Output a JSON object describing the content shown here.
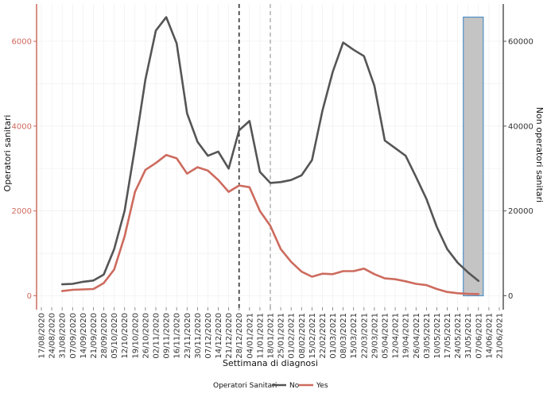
{
  "chart_data": {
    "type": "line",
    "xlabel": "Settimana di diagnosi",
    "ylabel_left": "Operatori sanitari",
    "ylabel_right": "Non operatori sanitari",
    "ylim_left": [
      0,
      7000
    ],
    "ylim_right": [
      0,
      70000
    ],
    "yticks_left": [
      0,
      2000,
      4000,
      6000
    ],
    "yticks_right": [
      0,
      20000,
      40000,
      60000
    ],
    "x_tick_labels": [
      "17/08/2020",
      "24/08/2020",
      "31/08/2020",
      "07/09/2020",
      "14/09/2020",
      "21/09/2020",
      "28/09/2020",
      "05/10/2020",
      "12/10/2020",
      "19/10/2020",
      "26/10/2020",
      "02/11/2020",
      "09/11/2020",
      "16/11/2020",
      "23/11/2020",
      "30/11/2020",
      "07/12/2020",
      "14/12/2020",
      "21/12/2020",
      "28/12/2020",
      "04/01/2021",
      "11/01/2021",
      "18/01/2021",
      "25/01/2021",
      "01/02/2021",
      "08/02/2021",
      "15/02/2021",
      "22/02/2021",
      "01/03/2021",
      "08/03/2021",
      "15/03/2021",
      "22/03/2021",
      "29/03/2021",
      "05/04/2021",
      "12/04/2021",
      "19/04/2021",
      "26/04/2021",
      "03/05/2021",
      "10/05/2021",
      "17/05/2021",
      "24/05/2021",
      "31/05/2021",
      "07/06/2021",
      "14/06/2021",
      "21/06/2021"
    ],
    "grid": true,
    "legend": {
      "title": "Operatori Sanitari",
      "position": "bottom",
      "entries": [
        {
          "name": "No",
          "color": "#555555"
        },
        {
          "name": "Yes",
          "color": "#cd6b5e"
        }
      ]
    },
    "series": [
      {
        "name": "No",
        "axis": "right",
        "color": "#555555",
        "x": [
          "31/08/2020",
          "07/09/2020",
          "14/09/2020",
          "21/09/2020",
          "28/09/2020",
          "05/10/2020",
          "12/10/2020",
          "19/10/2020",
          "26/10/2020",
          "02/11/2020",
          "09/11/2020",
          "16/11/2020",
          "23/11/2020",
          "30/11/2020",
          "07/12/2020",
          "14/12/2020",
          "21/12/2020",
          "28/12/2020",
          "04/01/2021",
          "11/01/2021",
          "18/01/2021",
          "25/01/2021",
          "01/02/2021",
          "08/02/2021",
          "15/02/2021",
          "22/02/2021",
          "01/03/2021",
          "08/03/2021",
          "15/03/2021",
          "22/03/2021",
          "29/03/2021",
          "05/04/2021",
          "12/04/2021",
          "19/04/2021",
          "26/04/2021",
          "03/05/2021",
          "10/05/2021",
          "17/05/2021",
          "24/05/2021",
          "31/05/2021",
          "07/06/2021"
        ],
        "values": [
          2700,
          2800,
          3300,
          3600,
          5000,
          11000,
          20000,
          35000,
          51000,
          62500,
          65700,
          59500,
          43000,
          36300,
          33000,
          34000,
          30000,
          39000,
          41200,
          29200,
          26600,
          26800,
          27300,
          28400,
          32000,
          43600,
          52800,
          59700,
          58000,
          56500,
          49500,
          36600,
          34800,
          33000,
          28000,
          22800,
          16200,
          11000,
          7800,
          5500,
          3500
        ]
      },
      {
        "name": "Yes",
        "axis": "left",
        "color": "#cd6b5e",
        "x": [
          "31/08/2020",
          "07/09/2020",
          "14/09/2020",
          "21/09/2020",
          "28/09/2020",
          "05/10/2020",
          "12/10/2020",
          "19/10/2020",
          "26/10/2020",
          "02/11/2020",
          "09/11/2020",
          "16/11/2020",
          "23/11/2020",
          "30/11/2020",
          "07/12/2020",
          "14/12/2020",
          "21/12/2020",
          "28/12/2020",
          "04/01/2021",
          "11/01/2021",
          "18/01/2021",
          "25/01/2021",
          "01/02/2021",
          "08/02/2021",
          "15/02/2021",
          "22/02/2021",
          "01/03/2021",
          "08/03/2021",
          "15/03/2021",
          "22/03/2021",
          "29/03/2021",
          "05/04/2021",
          "12/04/2021",
          "19/04/2021",
          "26/04/2021",
          "03/05/2021",
          "10/05/2021",
          "17/05/2021",
          "24/05/2021",
          "31/05/2021",
          "07/06/2021"
        ],
        "values": [
          110,
          140,
          150,
          160,
          300,
          620,
          1400,
          2450,
          2970,
          3130,
          3320,
          3240,
          2880,
          3030,
          2950,
          2730,
          2450,
          2600,
          2560,
          2000,
          1650,
          1100,
          800,
          570,
          450,
          520,
          510,
          580,
          580,
          640,
          510,
          410,
          390,
          340,
          280,
          250,
          160,
          90,
          60,
          45,
          40
        ]
      }
    ],
    "annotations": [
      {
        "type": "vline",
        "x": "28/12/2020",
        "style": "dashed",
        "color": "#333333"
      },
      {
        "type": "vline",
        "x": "18/01/2021",
        "style": "dashed",
        "color": "#aaaaaa"
      },
      {
        "type": "rect",
        "x_start": "31/05/2021",
        "x_end": "07/06/2021",
        "y_right_top": 65700,
        "fill": "#c4c4c4",
        "border": "#4f8fc4"
      }
    ],
    "colors": {
      "left_axis": "#cd6b5e",
      "right_axis": "#555555",
      "no_series": "#555555",
      "yes_series": "#cd6b5e",
      "rect_fill": "#c4c4c4",
      "rect_border": "#4f8fc4"
    }
  }
}
